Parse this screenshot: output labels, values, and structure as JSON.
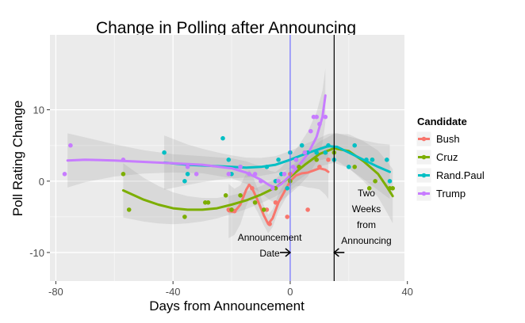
{
  "chart_data": {
    "type": "scatter",
    "title": "Change in Polling after Announcing",
    "xlabel": "Days from Announcement",
    "ylabel": "Poll Rating Change",
    "xlim": [
      -82,
      39
    ],
    "ylim": [
      -14,
      20.5
    ],
    "xticks": [
      -80,
      -40,
      0,
      40
    ],
    "yticks": [
      -10,
      0,
      10
    ],
    "xtick_labels": [
      "-80",
      "-40",
      "0",
      "40"
    ],
    "ytick_labels": [
      "-10",
      "0",
      "10"
    ],
    "grid": true,
    "legend_title": "Candidate",
    "legend_position": "right",
    "vlines": [
      {
        "name": "announcement-line",
        "x": 0,
        "color": "#6c6cff"
      },
      {
        "name": "two-weeks-line",
        "x": 15,
        "color": "#000000"
      }
    ],
    "annotations": [
      {
        "name": "announcement-date",
        "lines": [
          "Announcement",
          "Date"
        ],
        "x": -7,
        "y": -9,
        "arrow_to": 0
      },
      {
        "name": "two-weeks-from-announcing",
        "lines": [
          "Two",
          "Weeks",
          "from",
          "Announcing"
        ],
        "x": 26,
        "y": -5,
        "arrow_to": 15
      }
    ],
    "series": [
      {
        "name": "Bush",
        "color": "#F8766D",
        "points": [
          [
            -21,
            -4
          ],
          [
            -20,
            -4
          ],
          [
            -19,
            -4.2
          ],
          [
            -13,
            -1
          ],
          [
            -8,
            -4
          ],
          [
            -7,
            -6
          ],
          [
            -5,
            -3
          ],
          [
            -1,
            -5
          ],
          [
            0,
            1
          ],
          [
            6,
            -4
          ],
          [
            10,
            2
          ],
          [
            13,
            3
          ]
        ],
        "smooth": [
          [
            -21,
            -4.2
          ],
          [
            -19,
            -4.3
          ],
          [
            -17,
            -3.3
          ],
          [
            -15,
            -1.2
          ],
          [
            -14,
            -0.5
          ],
          [
            -13,
            -1
          ],
          [
            -11,
            -2.8
          ],
          [
            -9,
            -4.8
          ],
          [
            -7.5,
            -6
          ],
          [
            -6,
            -5.2
          ],
          [
            -4,
            -3
          ],
          [
            -2,
            -1.5
          ],
          [
            0,
            0
          ],
          [
            2,
            0.8
          ],
          [
            4,
            1.1
          ],
          [
            6,
            1.2
          ],
          [
            8,
            1.5
          ],
          [
            10,
            1.8
          ],
          [
            12,
            1.6
          ],
          [
            13,
            1.3
          ]
        ]
      },
      {
        "name": "Cruz",
        "color": "#7CAE00",
        "points": [
          [
            -57,
            1
          ],
          [
            -55,
            -4
          ],
          [
            -36,
            -5
          ],
          [
            -29,
            -3
          ],
          [
            -28,
            -3
          ],
          [
            -22,
            -2
          ],
          [
            -20,
            -4
          ],
          [
            -17,
            -2
          ],
          [
            -12,
            -3
          ],
          [
            -9,
            -4
          ],
          [
            -5,
            -1
          ],
          [
            0,
            0
          ],
          [
            3,
            2
          ],
          [
            5,
            4
          ],
          [
            9,
            3
          ],
          [
            12,
            4
          ],
          [
            15,
            4
          ],
          [
            22,
            2
          ],
          [
            27,
            -1
          ],
          [
            28,
            3
          ],
          [
            29,
            0
          ],
          [
            34,
            -1
          ],
          [
            35,
            -1
          ]
        ],
        "smooth": [
          [
            -57,
            -1.3
          ],
          [
            -50,
            -2.6
          ],
          [
            -45,
            -3.3
          ],
          [
            -40,
            -3.8
          ],
          [
            -35,
            -4.0
          ],
          [
            -30,
            -4.0
          ],
          [
            -25,
            -3.8
          ],
          [
            -20,
            -3.3
          ],
          [
            -15,
            -2.7
          ],
          [
            -10,
            -1.9
          ],
          [
            -5,
            -0.9
          ],
          [
            0,
            0.6
          ],
          [
            5,
            2.3
          ],
          [
            10,
            3.8
          ],
          [
            15,
            4.6
          ],
          [
            20,
            4.2
          ],
          [
            25,
            2.8
          ],
          [
            30,
            1.0
          ],
          [
            33,
            -0.8
          ],
          [
            35,
            -2.1
          ]
        ]
      },
      {
        "name": "Rand.Paul",
        "color": "#00BFC4",
        "points": [
          [
            -43,
            4
          ],
          [
            -36,
            0
          ],
          [
            -35,
            1
          ],
          [
            -23,
            6
          ],
          [
            -21,
            3
          ],
          [
            -20,
            1
          ],
          [
            -17,
            2
          ],
          [
            -8,
            2
          ],
          [
            -5,
            0
          ],
          [
            -4,
            3
          ],
          [
            -3,
            1
          ],
          [
            -1,
            -1
          ],
          [
            0,
            4
          ],
          [
            2,
            3
          ],
          [
            4,
            5
          ],
          [
            6,
            4
          ],
          [
            9,
            4
          ],
          [
            12,
            4
          ],
          [
            13,
            5
          ],
          [
            15,
            3
          ],
          [
            20,
            2
          ],
          [
            22,
            5
          ],
          [
            26,
            3
          ],
          [
            28,
            3
          ],
          [
            33,
            3
          ],
          [
            34,
            0
          ]
        ],
        "smooth": [
          [
            -43,
            2.6
          ],
          [
            -35,
            2.3
          ],
          [
            -30,
            2.2
          ],
          [
            -25,
            2.1
          ],
          [
            -20,
            2.0
          ],
          [
            -15,
            1.9
          ],
          [
            -10,
            2.0
          ],
          [
            -5,
            2.3
          ],
          [
            0,
            3.0
          ],
          [
            5,
            3.8
          ],
          [
            10,
            4.5
          ],
          [
            13,
            4.9
          ],
          [
            16,
            4.8
          ],
          [
            20,
            4.0
          ],
          [
            25,
            3.0
          ],
          [
            30,
            2.0
          ],
          [
            34,
            1.3
          ]
        ]
      },
      {
        "name": "Trump",
        "color": "#C77CFF",
        "points": [
          [
            -77,
            1
          ],
          [
            -75,
            5
          ],
          [
            -57,
            3
          ],
          [
            -35,
            2
          ],
          [
            -32,
            1
          ],
          [
            -21,
            1
          ],
          [
            -17,
            2
          ],
          [
            -14,
            1
          ],
          [
            -12,
            1
          ],
          [
            -10,
            0
          ],
          [
            -6,
            -1
          ],
          [
            -4,
            0
          ],
          [
            -2,
            1
          ],
          [
            1,
            2
          ],
          [
            2,
            3
          ],
          [
            5,
            4
          ],
          [
            7,
            7
          ],
          [
            8,
            9
          ],
          [
            9,
            9
          ],
          [
            10,
            8
          ],
          [
            12,
            9
          ]
        ],
        "smooth": [
          [
            -76,
            2.9
          ],
          [
            -70,
            3.0
          ],
          [
            -60,
            2.9
          ],
          [
            -50,
            2.7
          ],
          [
            -40,
            2.5
          ],
          [
            -30,
            2.3
          ],
          [
            -20,
            1.8
          ],
          [
            -15,
            1.2
          ],
          [
            -10,
            0.2
          ],
          [
            -7,
            -0.6
          ],
          [
            -5,
            -0.9
          ],
          [
            -3,
            -0.4
          ],
          [
            0,
            0.8
          ],
          [
            3,
            2.2
          ],
          [
            6,
            3.8
          ],
          [
            9,
            6.2
          ],
          [
            11,
            9.0
          ],
          [
            12,
            12.0
          ]
        ]
      }
    ]
  }
}
